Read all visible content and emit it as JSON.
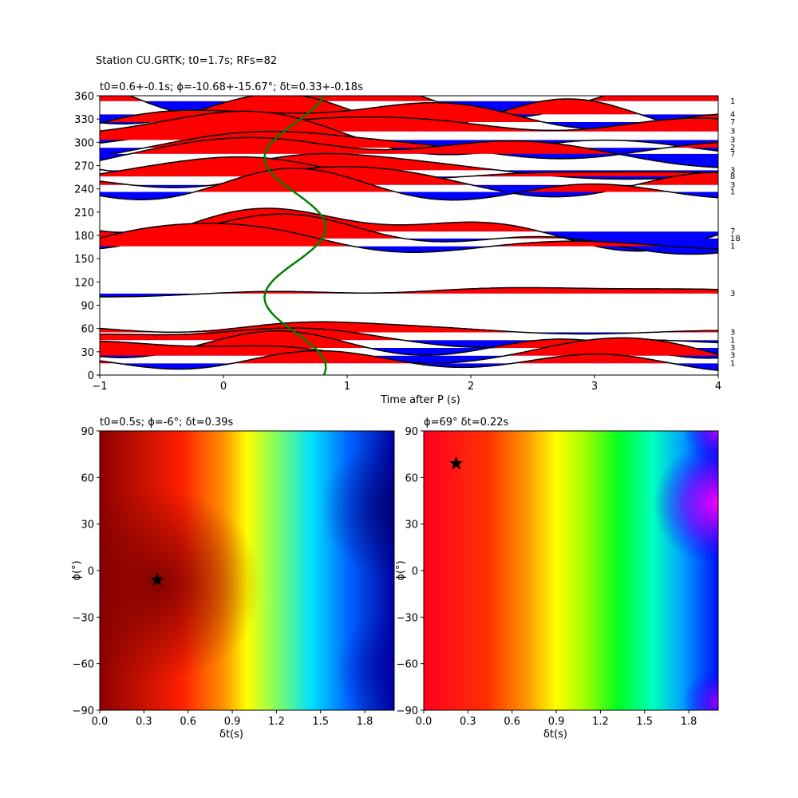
{
  "figure": {
    "suptitle": "Station CU.GRTK; t0=1.7s; RFs=82"
  },
  "chart_data": [
    {
      "type": "line",
      "panel": "traces",
      "title": "t0=0.6+-0.1s; ϕ=-10.68+-15.67°; δt=0.33+-0.18s",
      "xlabel": "Time after P (s)",
      "ylabel": "",
      "xlim": [
        -1,
        4
      ],
      "ylim": [
        0,
        360
      ],
      "xticks": [
        "−1",
        "0",
        "1",
        "2",
        "3",
        "4"
      ],
      "yticks": [
        "0",
        "30",
        "60",
        "90",
        "120",
        "150",
        "180",
        "210",
        "240",
        "270",
        "300",
        "330",
        "360"
      ],
      "fill_colors": {
        "positive": "#ff0000",
        "negative": "#0000ff",
        "line": "#000000",
        "model_curve": "#008000"
      },
      "count_labels": [
        {
          "baz": 353,
          "count": "1"
        },
        {
          "baz": 336,
          "count": "4"
        },
        {
          "baz": 326,
          "count": "7"
        },
        {
          "baz": 314,
          "count": "3"
        },
        {
          "baz": 303,
          "count": "3"
        },
        {
          "baz": 293,
          "count": "2"
        },
        {
          "baz": 285,
          "count": "7"
        },
        {
          "baz": 264,
          "count": "3"
        },
        {
          "baz": 256,
          "count": "8"
        },
        {
          "baz": 245,
          "count": "3"
        },
        {
          "baz": 236,
          "count": "1"
        },
        {
          "baz": 185,
          "count": "7"
        },
        {
          "baz": 176,
          "count": "18"
        },
        {
          "baz": 166,
          "count": "1"
        },
        {
          "baz": 105,
          "count": "3"
        },
        {
          "baz": 55,
          "count": "3"
        },
        {
          "baz": 45,
          "count": "1"
        },
        {
          "baz": 35,
          "count": "3"
        },
        {
          "baz": 25,
          "count": "3"
        },
        {
          "baz": 15,
          "count": "1"
        }
      ],
      "model_curve": {
        "t0": 0.6,
        "amplitude": 0.33,
        "baz_range": [
          0,
          360
        ]
      }
    },
    {
      "type": "heatmap",
      "panel": "grid-search-left",
      "title": "t0=0.5s; ϕ=-6°; δt=0.39s",
      "xlabel": "δt(s)",
      "ylabel": "ϕ(°)",
      "xlim": [
        0,
        2
      ],
      "ylim": [
        -90,
        90
      ],
      "xticks": [
        "0.0",
        "0.3",
        "0.6",
        "0.9",
        "1.2",
        "1.5",
        "1.8"
      ],
      "yticks": [
        "−90",
        "−60",
        "−30",
        "0",
        "30",
        "60",
        "90"
      ],
      "best": {
        "dt": 0.39,
        "phi": -6
      },
      "colormap": "jet"
    },
    {
      "type": "heatmap",
      "panel": "grid-search-right",
      "title": "ϕ=69° δt=0.22s",
      "xlabel": "δt(s)",
      "ylabel": "ϕ(°)",
      "xlim": [
        0,
        2
      ],
      "ylim": [
        -90,
        90
      ],
      "xticks": [
        "0.0",
        "0.3",
        "0.6",
        "0.9",
        "1.2",
        "1.5",
        "1.8"
      ],
      "yticks": [
        "−90",
        "−60",
        "−30",
        "0",
        "30",
        "60",
        "90"
      ],
      "best": {
        "dt": 0.22,
        "phi": 69
      },
      "colormap": "hsv"
    }
  ]
}
